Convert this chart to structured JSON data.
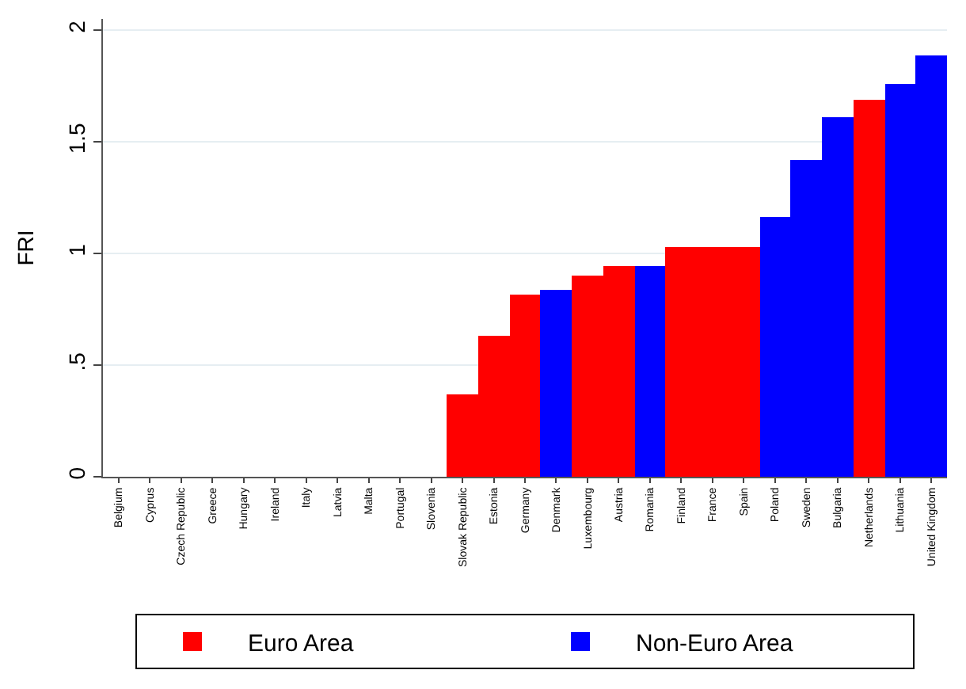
{
  "chart_data": {
    "type": "bar",
    "ylabel": "FRI",
    "categories": [
      "Belgium",
      "Cyprus",
      "Czech Republic",
      "Greece",
      "Hungary",
      "Ireland",
      "Italy",
      "Latvia",
      "Malta",
      "Portugal",
      "Slovenia",
      "Slovak Republic",
      "Estonia",
      "Germany",
      "Denmark",
      "Luxembourg",
      "Austria",
      "Romania",
      "Finland",
      "France",
      "Spain",
      "Poland",
      "Sweden",
      "Bulgaria",
      "Netherlands",
      "Lithuania",
      "United Kingdom"
    ],
    "series": [
      {
        "name": "Euro Area",
        "color": "#ff0000",
        "values": [
          0,
          0,
          null,
          0,
          null,
          0,
          0,
          0,
          0,
          0,
          0,
          0.37,
          0.63,
          0.815,
          null,
          0.9,
          0.94,
          null,
          1.03,
          1.03,
          1.03,
          null,
          null,
          null,
          1.69,
          null,
          null
        ]
      },
      {
        "name": "Non-Euro Area",
        "color": "#0000ff",
        "values": [
          null,
          null,
          0,
          null,
          0,
          null,
          null,
          null,
          null,
          null,
          null,
          null,
          null,
          null,
          0.84,
          null,
          null,
          0.94,
          null,
          null,
          null,
          1.16,
          1.42,
          1.61,
          null,
          1.76,
          1.89
        ]
      }
    ],
    "ylim": [
      0,
      2.05
    ],
    "yticks": [
      0,
      {
        "value": 0.5,
        "label": ".5"
      },
      1,
      1.5,
      2
    ],
    "grid": "y",
    "legend": "bottom"
  }
}
